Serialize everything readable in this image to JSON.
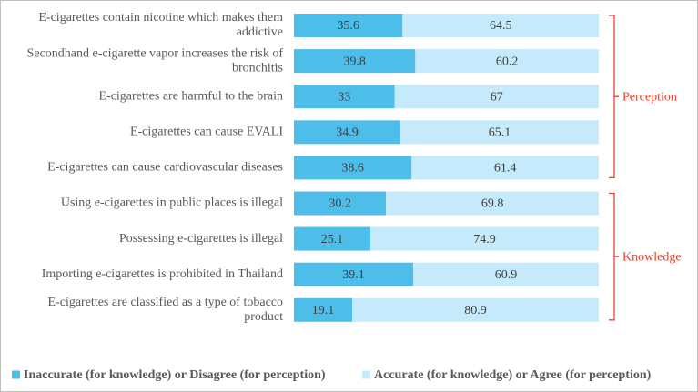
{
  "chart_data": {
    "type": "bar",
    "orientation": "horizontal",
    "stacked": true,
    "categories": [
      "E-cigarettes contain nicotine which makes them addictive",
      "Secondhand e-cigarette vapor increases the risk of bronchitis",
      "E-cigarettes are harmful to the brain",
      "E-cigarettes can cause EVALI",
      "E-cigarettes can cause cardiovascular diseases",
      "Using e-cigarettes in public places is illegal",
      "Possessing e-cigarettes is illegal",
      "Importing e-cigarettes is prohibited in Thailand",
      "E-cigarettes are classified as a type of tobacco product"
    ],
    "category_lines": [
      [
        "E-cigarettes contain nicotine which makes them",
        "addictive"
      ],
      [
        "Secondhand e-cigarette vapor increases the risk of",
        "bronchitis"
      ],
      [
        "E-cigarettes are harmful to the brain"
      ],
      [
        "E-cigarettes can cause EVALI"
      ],
      [
        "E-cigarettes can cause cardiovascular diseases"
      ],
      [
        "Using e-cigarettes in public places is illegal"
      ],
      [
        "Possessing e-cigarettes is illegal"
      ],
      [
        "Importing e-cigarettes is prohibited in Thailand"
      ],
      [
        "E-cigarettes are classified as a type of tobacco",
        "product"
      ]
    ],
    "series": [
      {
        "name": "Inaccurate (for knowledge) or Disagree (for perception)",
        "color": "#4dbde9",
        "values": [
          35.6,
          39.8,
          33,
          34.9,
          38.6,
          30.2,
          25.1,
          39.1,
          19.1
        ],
        "labels": [
          "35.6",
          "39.8",
          "33",
          "34.9",
          "38.6",
          "30.2",
          "25.1",
          "39.1",
          "19.1"
        ]
      },
      {
        "name": "Accurate (for knowledge) or Agree (for perception)",
        "color": "#c5eafb",
        "values": [
          64.5,
          60.2,
          67,
          65.1,
          61.4,
          69.8,
          74.9,
          60.9,
          80.9
        ],
        "labels": [
          "64.5",
          "60.2",
          "67",
          "65.1",
          "61.4",
          "69.8",
          "74.9",
          "60.9",
          "80.9"
        ]
      }
    ],
    "xlim": [
      0,
      100
    ],
    "groups": [
      {
        "label": "Perception",
        "first": 0,
        "last": 4,
        "color": "#e8432c"
      },
      {
        "label": "Knowledge",
        "first": 5,
        "last": 8,
        "color": "#e8432c"
      }
    ],
    "legend_position": "bottom",
    "xlabel": "",
    "ylabel": "",
    "grid": false
  }
}
